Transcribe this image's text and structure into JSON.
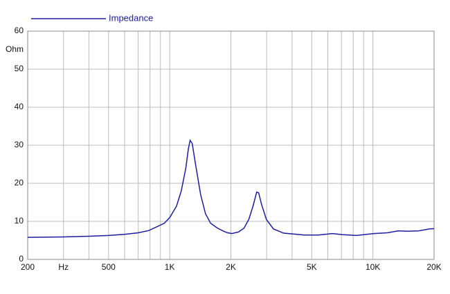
{
  "chart_data": {
    "type": "line",
    "y_label": "Ohm",
    "xscale": "log",
    "grid": true,
    "legend": "top-left",
    "xlim": [
      200,
      20000
    ],
    "ylim": [
      0,
      60
    ],
    "yticks": [
      0,
      10,
      20,
      30,
      40,
      50,
      60
    ],
    "xticks": [
      200,
      {
        "value": 300,
        "label": "Hz"
      },
      500,
      {
        "value": 1000,
        "label": "1K"
      },
      {
        "value": 2000,
        "label": "2K"
      },
      {
        "value": 5000,
        "label": "5K"
      },
      {
        "value": 10000,
        "label": "10K"
      },
      {
        "value": 20000,
        "label": "20K"
      }
    ],
    "xgrid": [
      400,
      600,
      700,
      800,
      900,
      3000,
      4000,
      6000,
      7000,
      8000,
      9000
    ],
    "x": [
      200,
      300,
      400,
      500,
      600,
      700,
      790,
      940,
      1000,
      1080,
      1140,
      1200,
      1235,
      1260,
      1290,
      1340,
      1420,
      1500,
      1590,
      1720,
      1860,
      1930,
      2020,
      2180,
      2320,
      2450,
      2570,
      2680,
      2740,
      2830,
      2990,
      3240,
      3640,
      4600,
      5390,
      6320,
      7100,
      8300,
      10100,
      11800,
      13300,
      14940,
      16800,
      18900,
      20000
    ],
    "series": [
      {
        "name": "Impedance",
        "color": "#1c1ca0",
        "values": [
          5.8,
          5.9,
          6.1,
          6.3,
          6.6,
          7.0,
          7.6,
          9.5,
          11,
          14,
          18,
          24,
          29,
          31.3,
          30.5,
          25,
          17,
          12,
          9.5,
          8.2,
          7.3,
          7.0,
          6.8,
          7.2,
          8.2,
          10.5,
          14,
          17.7,
          17.5,
          14.5,
          10.5,
          8,
          6.9,
          6.4,
          6.4,
          6.8,
          6.5,
          6.3,
          6.8,
          7.0,
          7.5,
          7.4,
          7.5,
          8.0,
          8.1
        ]
      }
    ]
  }
}
